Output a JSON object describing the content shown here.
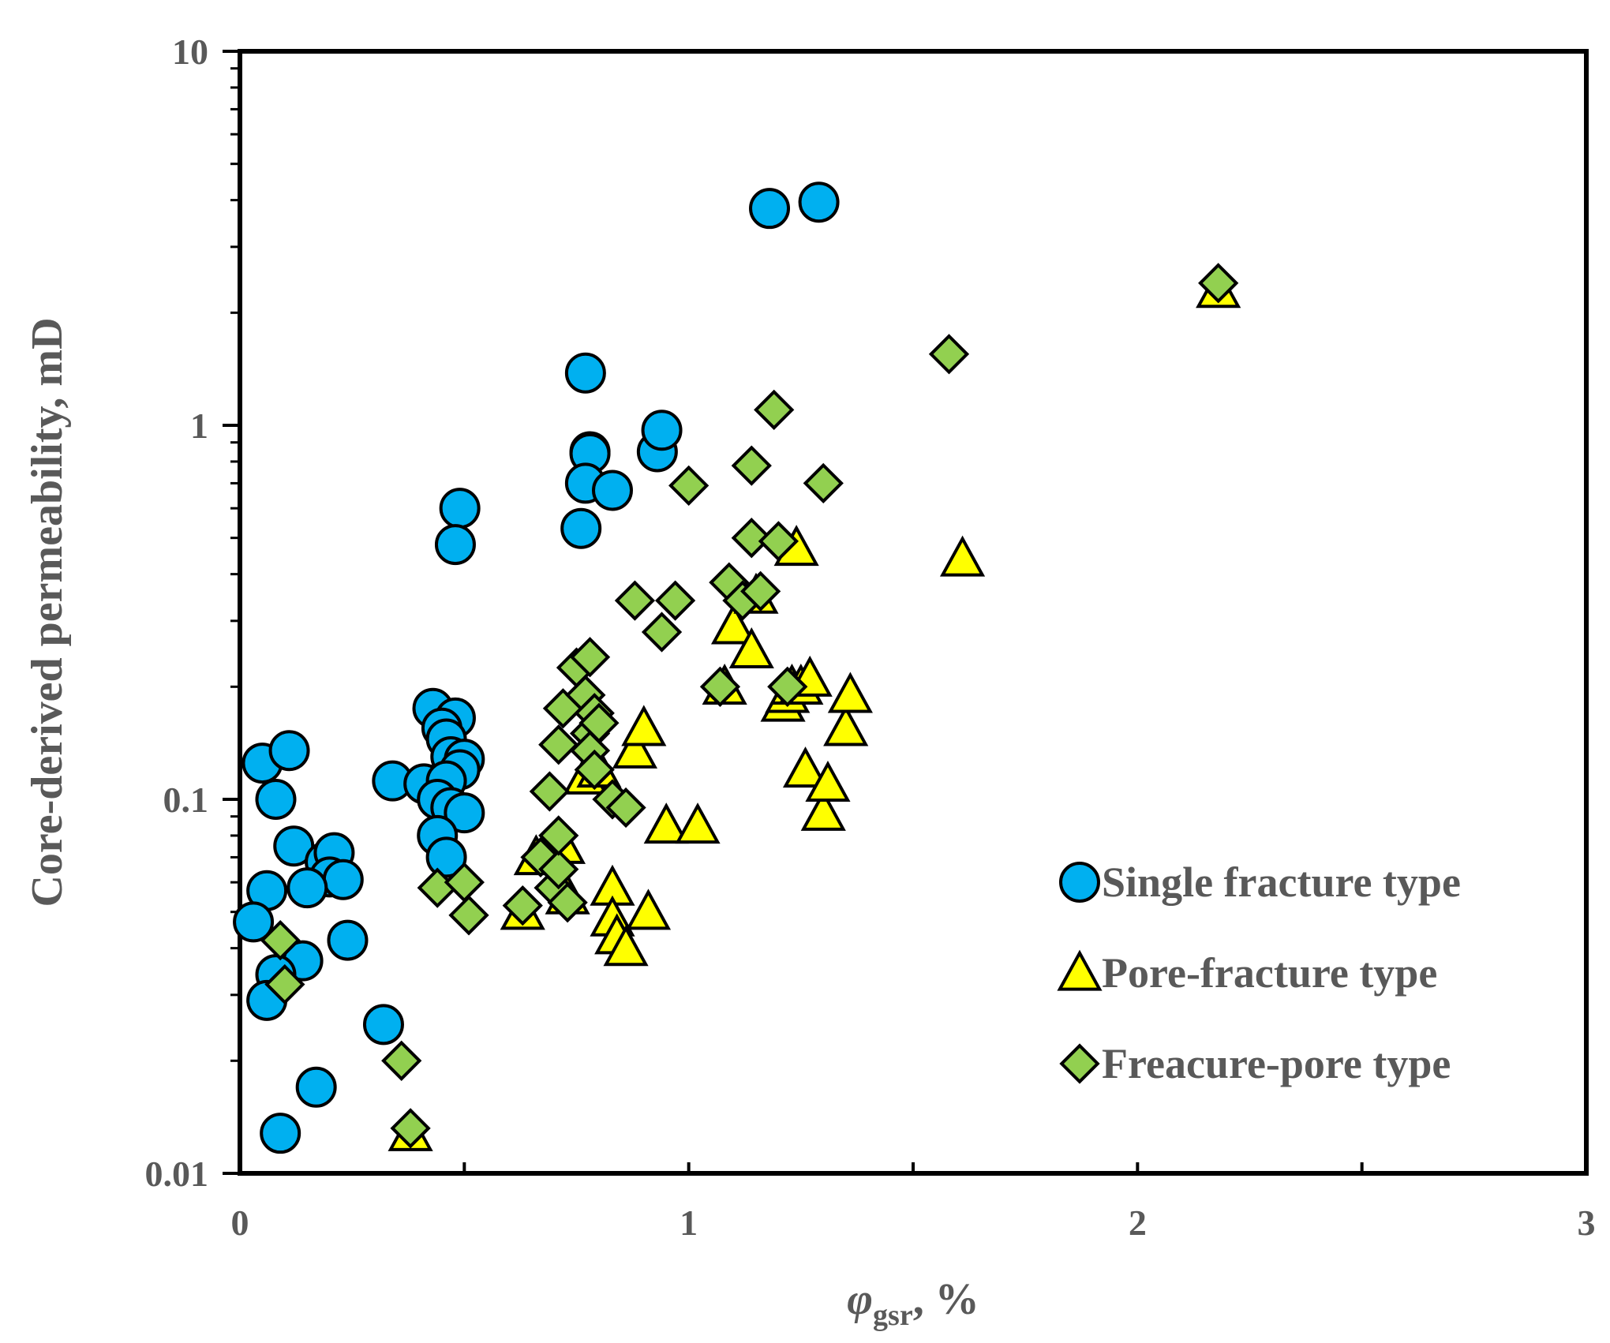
{
  "chart_data": {
    "type": "scatter",
    "title": "",
    "xlabel": "φgsr, %",
    "xlabel_symbol": "φ",
    "xlabel_subscript": "gsr",
    "xlabel_suffix": ", %",
    "ylabel": "Core-derived permeability, mD",
    "xlim": [
      0,
      3
    ],
    "ylim": [
      0.01,
      10
    ],
    "yscale": "log",
    "x_ticks": [
      0,
      1,
      2,
      3
    ],
    "x_tick_labels": [
      "0",
      "1",
      "2",
      "3"
    ],
    "y_ticks": [
      0.01,
      0.1,
      1,
      10
    ],
    "y_tick_labels": [
      "0.01",
      "0.1",
      "1",
      "10"
    ],
    "legend_position": "bottom-right",
    "grid": false,
    "series": [
      {
        "name": "Single fracture type",
        "marker": "circle",
        "color": "#00B0F0",
        "points": [
          [
            0.05,
            0.125
          ],
          [
            0.11,
            0.135
          ],
          [
            0.08,
            0.1
          ],
          [
            0.12,
            0.075
          ],
          [
            0.19,
            0.068
          ],
          [
            0.21,
            0.072
          ],
          [
            0.2,
            0.062
          ],
          [
            0.23,
            0.061
          ],
          [
            0.15,
            0.058
          ],
          [
            0.06,
            0.057
          ],
          [
            0.03,
            0.047
          ],
          [
            0.24,
            0.042
          ],
          [
            0.14,
            0.037
          ],
          [
            0.08,
            0.034
          ],
          [
            0.06,
            0.029
          ],
          [
            0.32,
            0.025
          ],
          [
            0.17,
            0.017
          ],
          [
            0.09,
            0.0128
          ],
          [
            0.34,
            0.112
          ],
          [
            0.41,
            0.11
          ],
          [
            0.43,
            0.175
          ],
          [
            0.48,
            0.165
          ],
          [
            0.45,
            0.155
          ],
          [
            0.46,
            0.145
          ],
          [
            0.47,
            0.13
          ],
          [
            0.5,
            0.128
          ],
          [
            0.49,
            0.12
          ],
          [
            0.46,
            0.112
          ],
          [
            0.44,
            0.1
          ],
          [
            0.47,
            0.095
          ],
          [
            0.5,
            0.092
          ],
          [
            0.44,
            0.08
          ],
          [
            0.46,
            0.07
          ],
          [
            0.49,
            0.6
          ],
          [
            0.48,
            0.48
          ],
          [
            0.77,
            1.38
          ],
          [
            0.78,
            0.85
          ],
          [
            0.78,
            0.84
          ],
          [
            0.77,
            0.7
          ],
          [
            0.83,
            0.67
          ],
          [
            0.76,
            0.53
          ],
          [
            0.93,
            0.85
          ],
          [
            0.94,
            0.97
          ],
          [
            1.18,
            3.8
          ],
          [
            1.29,
            3.95
          ]
        ]
      },
      {
        "name": "Pore-fracture type",
        "marker": "triangle",
        "color": "#FFFF00",
        "points": [
          [
            0.38,
            0.0128
          ],
          [
            0.63,
            0.05
          ],
          [
            0.66,
            0.07
          ],
          [
            0.72,
            0.075
          ],
          [
            0.73,
            0.055
          ],
          [
            0.77,
            0.115
          ],
          [
            0.8,
            0.12
          ],
          [
            0.83,
            0.058
          ],
          [
            0.83,
            0.048
          ],
          [
            0.84,
            0.043
          ],
          [
            0.86,
            0.04
          ],
          [
            0.91,
            0.05
          ],
          [
            0.88,
            0.135
          ],
          [
            0.9,
            0.155
          ],
          [
            0.95,
            0.085
          ],
          [
            1.02,
            0.085
          ],
          [
            1.08,
            0.2
          ],
          [
            1.1,
            0.29
          ],
          [
            1.14,
            0.25
          ],
          [
            1.15,
            0.35
          ],
          [
            1.21,
            0.18
          ],
          [
            1.22,
            0.19
          ],
          [
            1.23,
            0.2
          ],
          [
            1.25,
            0.2
          ],
          [
            1.27,
            0.21
          ],
          [
            1.26,
            0.12
          ],
          [
            1.3,
            0.092
          ],
          [
            1.31,
            0.11
          ],
          [
            1.35,
            0.155
          ],
          [
            1.36,
            0.19
          ],
          [
            1.24,
            0.47
          ],
          [
            1.61,
            0.44
          ],
          [
            2.18,
            2.3
          ]
        ]
      },
      {
        "name": "Freacure-pore type",
        "marker": "diamond",
        "color": "#92D050",
        "points": [
          [
            0.09,
            0.042
          ],
          [
            0.1,
            0.032
          ],
          [
            0.36,
            0.02
          ],
          [
            0.38,
            0.0132
          ],
          [
            0.44,
            0.058
          ],
          [
            0.5,
            0.06
          ],
          [
            0.51,
            0.049
          ],
          [
            0.63,
            0.052
          ],
          [
            0.67,
            0.07
          ],
          [
            0.69,
            0.105
          ],
          [
            0.7,
            0.058
          ],
          [
            0.71,
            0.065
          ],
          [
            0.71,
            0.08
          ],
          [
            0.73,
            0.053
          ],
          [
            0.71,
            0.14
          ],
          [
            0.72,
            0.175
          ],
          [
            0.75,
            0.225
          ],
          [
            0.78,
            0.24
          ],
          [
            0.77,
            0.19
          ],
          [
            0.79,
            0.17
          ],
          [
            0.78,
            0.15
          ],
          [
            0.8,
            0.16
          ],
          [
            0.78,
            0.135
          ],
          [
            0.79,
            0.12
          ],
          [
            0.83,
            0.1
          ],
          [
            0.86,
            0.095
          ],
          [
            0.88,
            0.34
          ],
          [
            0.94,
            0.28
          ],
          [
            0.97,
            0.34
          ],
          [
            1.0,
            0.69
          ],
          [
            1.07,
            0.2
          ],
          [
            1.09,
            0.38
          ],
          [
            1.12,
            0.34
          ],
          [
            1.14,
            0.5
          ],
          [
            1.16,
            0.36
          ],
          [
            1.14,
            0.78
          ],
          [
            1.19,
            1.1
          ],
          [
            1.2,
            0.49
          ],
          [
            1.22,
            0.2
          ],
          [
            1.3,
            0.7
          ],
          [
            1.58,
            1.55
          ],
          [
            2.18,
            2.4
          ]
        ]
      }
    ]
  }
}
